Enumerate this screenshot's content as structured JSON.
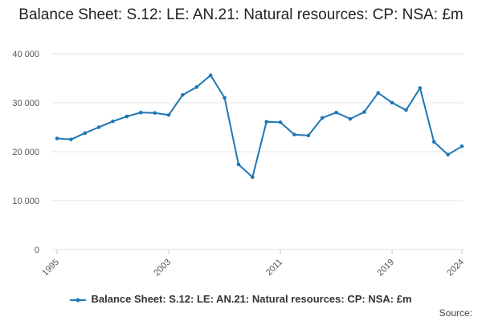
{
  "chart_data": {
    "type": "line",
    "title": "Balance Sheet: S.12: LE: AN.21: Natural resources: CP: NSA: £m",
    "xlabel": "",
    "ylabel": "",
    "ylim": [
      0,
      40000
    ],
    "xlim": [
      1995,
      2024
    ],
    "yticks": [
      0,
      10000,
      20000,
      30000,
      40000
    ],
    "ytick_labels": [
      "0",
      "10 000",
      "20 000",
      "30 000",
      "40 000"
    ],
    "xticks": [
      1995,
      2003,
      2011,
      2019,
      2024
    ],
    "xtick_labels": [
      "1995",
      "2003",
      "2011",
      "2019",
      "2024"
    ],
    "grid": "horizontal",
    "legend_position": "bottom",
    "series": [
      {
        "name": "Balance Sheet: S.12: LE: AN.21: Natural resources: CP: NSA: £m",
        "color": "#1f77b4",
        "points": [
          [
            1995,
            22700
          ],
          [
            1996,
            22500
          ],
          [
            1997,
            23800
          ],
          [
            1998,
            25000
          ],
          [
            1999,
            26200
          ],
          [
            2000,
            27200
          ],
          [
            2001,
            28000
          ],
          [
            2002,
            27900
          ],
          [
            2003,
            27500
          ],
          [
            2004,
            31600
          ],
          [
            2005,
            33200
          ],
          [
            2006,
            35600
          ],
          [
            2007,
            31000
          ],
          [
            2008,
            17400
          ],
          [
            2009,
            14800
          ],
          [
            2010,
            26100
          ],
          [
            2011,
            26000
          ],
          [
            2012,
            23500
          ],
          [
            2013,
            23300
          ],
          [
            2014,
            26900
          ],
          [
            2015,
            28000
          ],
          [
            2016,
            26700
          ],
          [
            2017,
            28100
          ],
          [
            2018,
            32000
          ],
          [
            2019,
            30000
          ],
          [
            2020,
            28500
          ],
          [
            2021,
            33000
          ],
          [
            2022,
            22000
          ],
          [
            2023,
            19400
          ],
          [
            2024,
            21100
          ]
        ]
      }
    ]
  },
  "footer": {
    "source_label": "Source:"
  }
}
